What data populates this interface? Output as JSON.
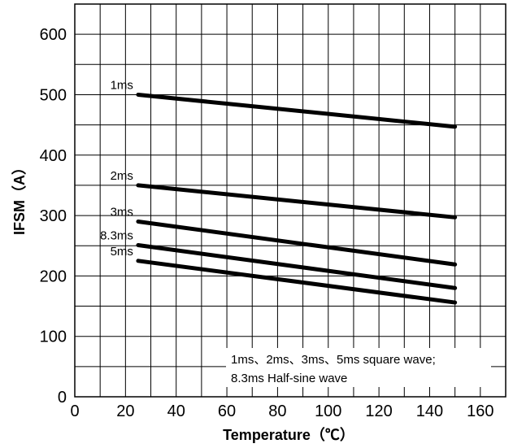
{
  "chart_data": {
    "type": "line",
    "xlabel": "Temperature（℃）",
    "ylabel": "IFSM（A）",
    "xlim": [
      0,
      170
    ],
    "ylim": [
      0,
      650
    ],
    "x_major_ticks": [
      0,
      20,
      40,
      60,
      80,
      100,
      120,
      140,
      160
    ],
    "y_major_ticks": [
      0,
      100,
      200,
      300,
      400,
      500,
      600
    ],
    "x_grid_step": 10,
    "y_grid_step": 50,
    "grid": true,
    "series": [
      {
        "name": "1ms",
        "x": [
          25,
          150
        ],
        "y": [
          500,
          447
        ]
      },
      {
        "name": "2ms",
        "x": [
          25,
          150
        ],
        "y": [
          350,
          297
        ]
      },
      {
        "name": "3ms",
        "x": [
          25,
          150
        ],
        "y": [
          290,
          219
        ]
      },
      {
        "name": "8.3ms",
        "x": [
          25,
          150
        ],
        "y": [
          251,
          180
        ]
      },
      {
        "name": "5ms",
        "x": [
          25,
          150
        ],
        "y": [
          225,
          156
        ]
      }
    ],
    "annotation": [
      "1ms、2ms、3ms、5ms square wave;",
      "8.3ms Half-sine wave"
    ]
  }
}
